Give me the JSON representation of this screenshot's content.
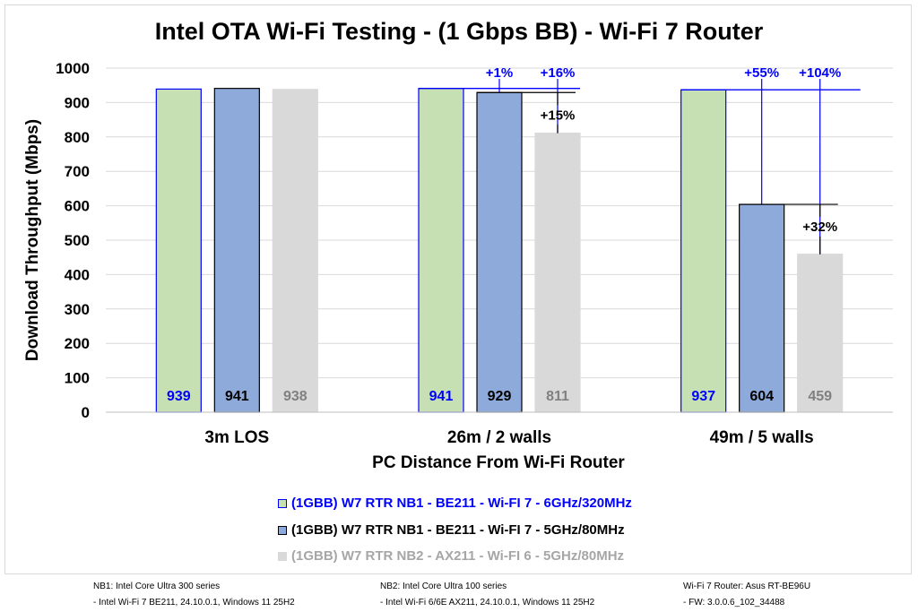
{
  "chart_data": {
    "type": "bar",
    "title": "Intel OTA Wi-Fi Testing - (1 Gbps BB) - Wi-Fi 7 Router",
    "xlabel": "PC Distance From Wi-Fi Router",
    "ylabel": "Download  Throughput (Mbps)",
    "ylim": [
      0,
      1000
    ],
    "yticks": [
      0,
      100,
      200,
      300,
      400,
      500,
      600,
      700,
      800,
      900,
      1000
    ],
    "categories": [
      "3m LOS",
      "26m / 2 walls",
      "49m / 5 walls"
    ],
    "series": [
      {
        "name": "(1GBB) W7 RTR NB1 - BE211 - Wi-FI 7 - 6GHz/320MHz",
        "values": [
          939,
          941,
          937
        ],
        "labels": [
          "939",
          "941",
          "937"
        ],
        "color": "#c6e0b4",
        "border": "#0000ff",
        "label_color": "#0000ff"
      },
      {
        "name": "(1GBB) W7 RTR NB1 - BE211 - Wi-FI 7 - 5GHz/80MHz",
        "values": [
          941,
          929,
          604
        ],
        "labels": [
          "941",
          "929",
          "604"
        ],
        "color": "#8eaadb",
        "border": "#000000",
        "label_color": "#000000"
      },
      {
        "name": "(1GBB) W7 RTR NB2 - AX211 - Wi-FI 6 - 5GHz/80MHz",
        "values": [
          938,
          811,
          459
        ],
        "labels": [
          "938",
          "811",
          "459"
        ],
        "color": "#d9d9d9",
        "border": "#d9d9d9",
        "label_color": "#808080"
      }
    ],
    "annotations": [
      {
        "category": 1,
        "text": "+1%",
        "ref_series": 0,
        "to_series": 1,
        "color": "#0000ff"
      },
      {
        "category": 1,
        "text": "+16%",
        "ref_series": 0,
        "to_series": 2,
        "color": "#0000ff"
      },
      {
        "category": 1,
        "text": "+15%",
        "ref_series": 1,
        "to_series": 2,
        "color": "#000000"
      },
      {
        "category": 2,
        "text": "+55%",
        "ref_series": 0,
        "to_series": 1,
        "color": "#0000ff"
      },
      {
        "category": 2,
        "text": "+104%",
        "ref_series": 0,
        "to_series": 2,
        "color": "#0000ff"
      },
      {
        "category": 2,
        "text": "+32%",
        "ref_series": 1,
        "to_series": 2,
        "color": "#000000"
      }
    ],
    "grid": true,
    "legend_position": "bottom"
  },
  "legend": [
    {
      "text": "(1GBB) W7 RTR NB1 - BE211 - Wi-FI 7 - 6GHz/320MHz",
      "color": "#0000ff"
    },
    {
      "text": "(1GBB) W7 RTR NB1 - BE211 - Wi-FI 7 - 5GHz/80MHz",
      "color": "#000000"
    },
    {
      "text": "(1GBB) W7 RTR NB2 - AX211 - Wi-FI 6 - 5GHz/80MHz",
      "color": "#a6a6a6"
    }
  ],
  "footnotes": {
    "nb1_line1": "NB1: Intel Core Ultra 300 series",
    "nb1_line2": "- Intel Wi-Fi 7 BE211, 24.10.0.1, Windows 11 25H2",
    "nb2_line1": "NB2: Intel Core Ultra 100 series",
    "nb2_line2": "- Intel Wi-Fi 6/6E AX211, 24.10.0.1, Windows 11 25H2",
    "router_line1": "Wi-Fi 7 Router: Asus RT-BE96U",
    "router_line2": "- FW: 3.0.0.6_102_34488"
  }
}
